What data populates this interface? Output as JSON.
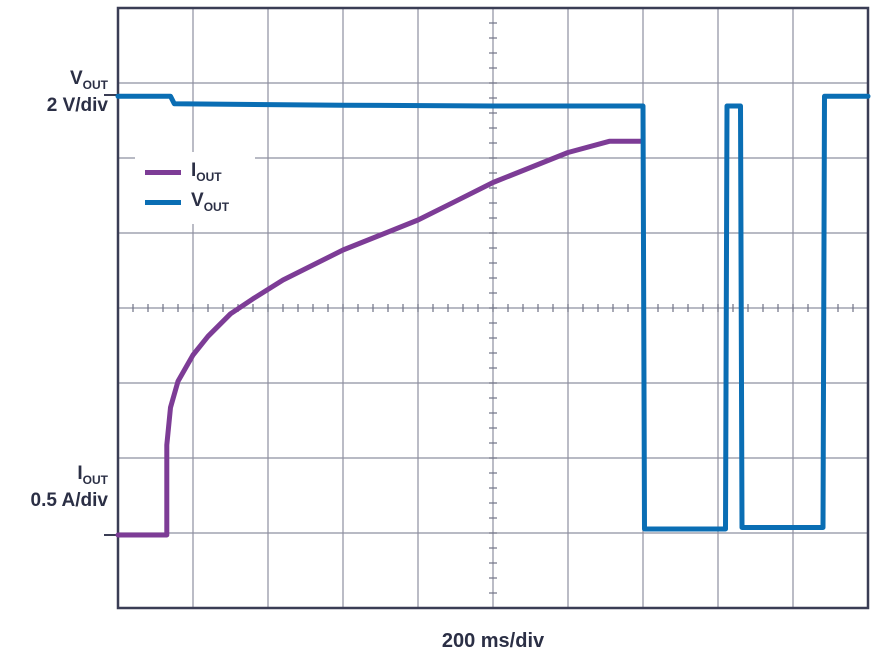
{
  "chart_data": {
    "type": "line",
    "xlabel": "200 ms/div",
    "channels": [
      {
        "name": "V",
        "sub": "OUT",
        "scale": "2 V/div",
        "color": "#0a6eb4"
      },
      {
        "name": "I",
        "sub": "OUT",
        "scale": "0.5 A/div",
        "color": "#7d3c96"
      }
    ],
    "x_divisions": 10,
    "y_divisions": 8,
    "grid": true,
    "legend_placement": "top-left",
    "units_note": "x in ms from left edge of screen; y in divisions above I_OUT zero reference",
    "series": [
      {
        "name": "I_OUT",
        "color": "#7d3c96",
        "points": [
          [
            0,
            0
          ],
          [
            65,
            0
          ],
          [
            65,
            1.2
          ],
          [
            70,
            1.7
          ],
          [
            80,
            2.05
          ],
          [
            100,
            2.4
          ],
          [
            120,
            2.65
          ],
          [
            150,
            2.95
          ],
          [
            180,
            3.15
          ],
          [
            220,
            3.4
          ],
          [
            260,
            3.6
          ],
          [
            300,
            3.8
          ],
          [
            350,
            4.0
          ],
          [
            400,
            4.2
          ],
          [
            450,
            4.45
          ],
          [
            500,
            4.7
          ],
          [
            550,
            4.9
          ],
          [
            600,
            5.1
          ],
          [
            655,
            5.25
          ],
          [
            700,
            5.25
          ]
        ]
      },
      {
        "name": "V_OUT",
        "color": "#0a6eb4",
        "points": [
          [
            0,
            5.85
          ],
          [
            70,
            5.85
          ],
          [
            75,
            5.75
          ],
          [
            300,
            5.73
          ],
          [
            500,
            5.72
          ],
          [
            700,
            5.72
          ],
          [
            702,
            0.08
          ],
          [
            810,
            0.08
          ],
          [
            812,
            5.72
          ],
          [
            830,
            5.72
          ],
          [
            832,
            0.1
          ],
          [
            940,
            0.1
          ],
          [
            942,
            5.85
          ],
          [
            1000,
            5.85
          ]
        ]
      }
    ]
  }
}
